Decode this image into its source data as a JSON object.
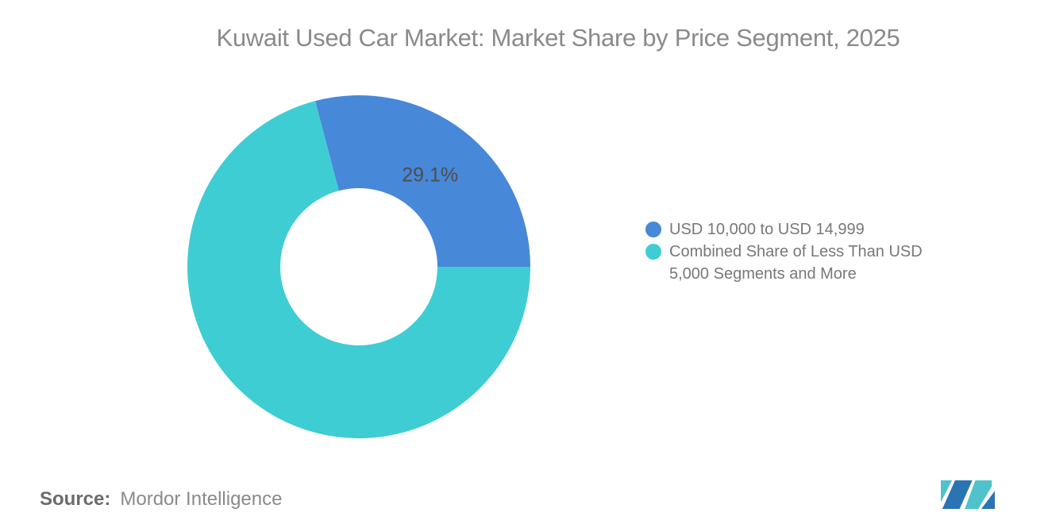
{
  "title": "Kuwait Used Car Market: Market Share by Price Segment, 2025",
  "source": {
    "label": "Source:",
    "value": "Mordor Intelligence"
  },
  "logo": {
    "teal": "#50C2CB",
    "blue": "#2B74B4"
  },
  "chart_data": {
    "type": "pie",
    "subtype": "donut",
    "title": "Kuwait Used Car Market: Market Share by Price Segment, 2025",
    "units": "%",
    "donut_hole_ratio": 0.46,
    "legend_position": "right",
    "grid": false,
    "series": [
      {
        "name": "USD 10,000 to USD 14,999",
        "value": 29.1,
        "label": "29.1%",
        "color": "#4788D8"
      },
      {
        "name": "Combined Share of Less Than USD 5,000 Segments and More",
        "value": 70.9,
        "label": "",
        "color": "#3FCDD4"
      }
    ],
    "colors": {
      "label_text": "#4d4d4d",
      "title_text": "#8a8a8a",
      "legend_text": "#76787b"
    }
  }
}
